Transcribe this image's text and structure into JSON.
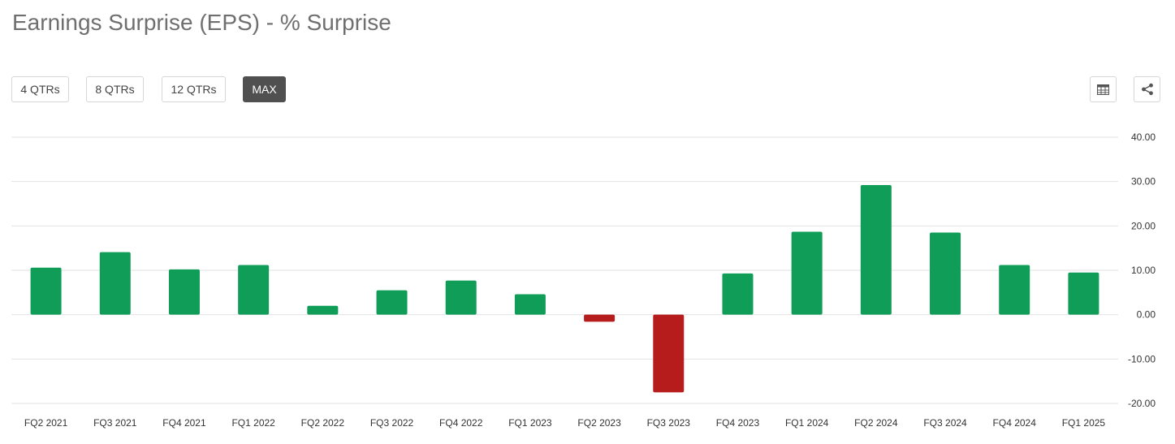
{
  "title": "Earnings Surprise (EPS) - % Surprise",
  "range_buttons": [
    {
      "label": "4 QTRs",
      "active": false
    },
    {
      "label": "8 QTRs",
      "active": false
    },
    {
      "label": "12 QTRs",
      "active": false
    },
    {
      "label": "MAX",
      "active": true
    }
  ],
  "toolbar": {
    "table_icon": "table-icon",
    "share_icon": "share-icon"
  },
  "colors": {
    "positive": "#0f9d58",
    "negative": "#b71c1c",
    "grid": "#e2e2e2",
    "active_button": "#505050"
  },
  "chart_data": {
    "type": "bar",
    "title": "",
    "xlabel": "",
    "ylabel": "",
    "categories": [
      "FQ2 2021",
      "FQ3 2021",
      "FQ4 2021",
      "FQ1 2022",
      "FQ2 2022",
      "FQ3 2022",
      "FQ4 2022",
      "FQ1 2023",
      "FQ2 2023",
      "FQ3 2023",
      "FQ4 2023",
      "FQ1 2024",
      "FQ2 2024",
      "FQ3 2024",
      "FQ4 2024",
      "FQ1 2025"
    ],
    "values": [
      10.6,
      14.1,
      10.2,
      11.2,
      2.0,
      5.5,
      7.7,
      4.6,
      -1.6,
      -17.5,
      9.3,
      18.7,
      29.2,
      18.5,
      11.2,
      9.5
    ],
    "ylim": [
      -20,
      40
    ],
    "yticks": [
      "40.00",
      "30.00",
      "20.00",
      "10.00",
      "0.00",
      "-10.00",
      "-20.00"
    ],
    "y_axis_position": "right",
    "grid": true
  }
}
